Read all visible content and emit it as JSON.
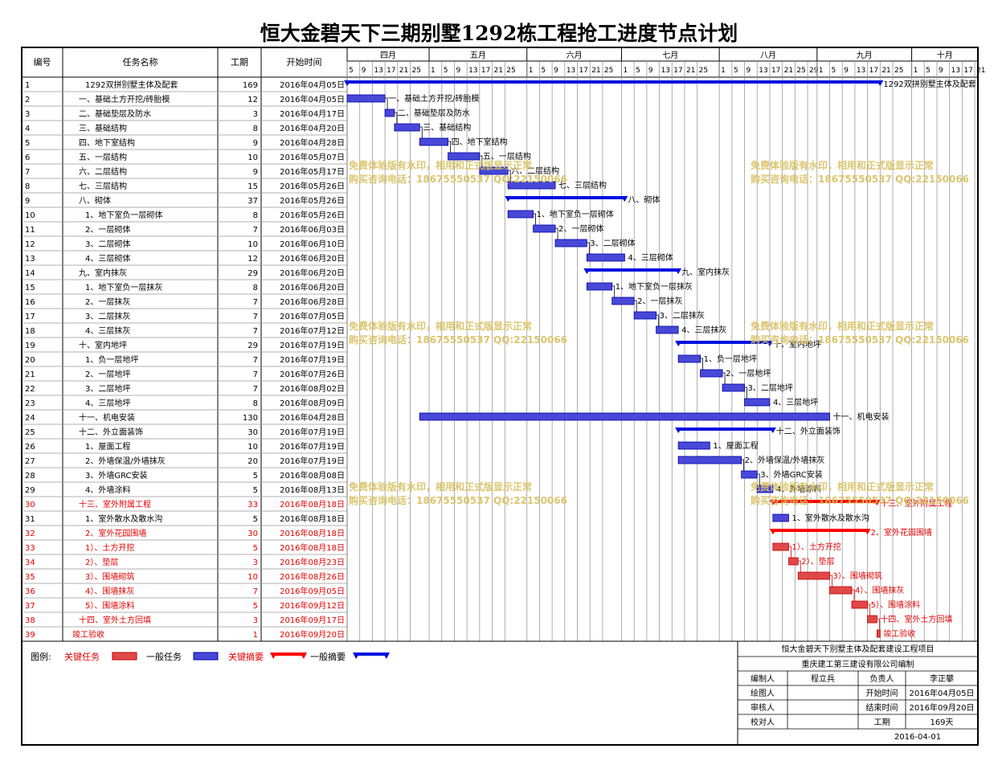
{
  "title": "恒大金碧天下三期别墅1292栋工程抢工进度节点计划",
  "header": {
    "id": "编号",
    "name": "任务名称",
    "duration": "工期",
    "start": "开始时间"
  },
  "months": [
    {
      "label": "四月",
      "days": [
        5,
        9,
        13,
        17,
        21,
        25
      ]
    },
    {
      "label": "五月",
      "days": [
        1,
        5,
        9,
        13,
        17,
        21,
        25
      ]
    },
    {
      "label": "六月",
      "days": [
        1,
        5,
        9,
        13,
        17,
        21,
        25
      ]
    },
    {
      "label": "七月",
      "days": [
        1,
        5,
        9,
        13,
        17,
        21,
        25
      ]
    },
    {
      "label": "八月",
      "days": [
        1,
        5,
        9,
        13,
        17,
        21,
        25,
        29
      ]
    },
    {
      "label": "九月",
      "days": [
        1,
        5,
        9,
        13,
        17,
        21,
        25
      ]
    },
    {
      "label": "十月",
      "days": [
        1,
        5,
        9,
        13,
        17,
        21
      ]
    }
  ],
  "colors": {
    "normal_fill": "#4848d8",
    "normal_stroke": "#0000a8",
    "critical_fill": "#e04848",
    "critical_stroke": "#c00000",
    "summary": "#0010e0",
    "summary_critical": "#ff0000",
    "critical_text": "#e00000",
    "watermark": "#d8c060"
  },
  "tasks": [
    {
      "id": "1",
      "name": "1292双拼别墅主体及配套",
      "duration": 169,
      "start": "2016年04月05日",
      "type": "summary",
      "critical": false,
      "label": "1292双拼别墅主体及配套"
    },
    {
      "id": "2",
      "name": "一、基础土方开挖/砖胎模",
      "duration": 12,
      "start": "2016年04月05日",
      "type": "task",
      "critical": false,
      "label": "一、基础土方开挖/砖胎模"
    },
    {
      "id": "3",
      "name": "二、基础垫层及防水",
      "duration": 3,
      "start": "2016年04月17日",
      "type": "task",
      "critical": false,
      "label": "二、基础垫层及防水"
    },
    {
      "id": "4",
      "name": "三、基础结构",
      "duration": 8,
      "start": "2016年04月20日",
      "type": "task",
      "critical": false,
      "label": "三、基础结构"
    },
    {
      "id": "5",
      "name": "四、地下室结构",
      "duration": 9,
      "start": "2016年04月28日",
      "type": "task",
      "critical": false,
      "label": "四、地下室结构"
    },
    {
      "id": "6",
      "name": "五、一层结构",
      "duration": 10,
      "start": "2016年05月07日",
      "type": "task",
      "critical": false,
      "label": "五、一层结构"
    },
    {
      "id": "7",
      "name": "六、二层结构",
      "duration": 9,
      "start": "2016年05月17日",
      "type": "task",
      "critical": false,
      "label": "六、二层结构"
    },
    {
      "id": "8",
      "name": "七、三层结构",
      "duration": 15,
      "start": "2016年05月26日",
      "type": "task",
      "critical": false,
      "label": "七、三层结构"
    },
    {
      "id": "9",
      "name": "八、砌体",
      "duration": 37,
      "start": "2016年05月26日",
      "type": "summary",
      "critical": false,
      "label": "八、砌体"
    },
    {
      "id": "10",
      "name": "1、地下室负一层砌体",
      "duration": 8,
      "start": "2016年05月26日",
      "type": "task",
      "critical": false,
      "label": "1、地下室负一层砌体"
    },
    {
      "id": "11",
      "name": "2、一层砌体",
      "duration": 7,
      "start": "2016年06月03日",
      "type": "task",
      "critical": false,
      "label": "2、一层砌体"
    },
    {
      "id": "12",
      "name": "3、二层砌体",
      "duration": 10,
      "start": "2016年06月10日",
      "type": "task",
      "critical": false,
      "label": "3、二层砌体"
    },
    {
      "id": "13",
      "name": "4、三层砌体",
      "duration": 12,
      "start": "2016年06月20日",
      "type": "task",
      "critical": false,
      "label": "4、三层砌体"
    },
    {
      "id": "14",
      "name": "九、室内抹灰",
      "duration": 29,
      "start": "2016年06月20日",
      "type": "summary",
      "critical": false,
      "label": "九、室内抹灰"
    },
    {
      "id": "15",
      "name": "1、地下室负一层抹灰",
      "duration": 8,
      "start": "2016年06月20日",
      "type": "task",
      "critical": false,
      "label": "1、地下室负一层抹灰"
    },
    {
      "id": "16",
      "name": "2、一层抹灰",
      "duration": 7,
      "start": "2016年06月28日",
      "type": "task",
      "critical": false,
      "label": "2、一层抹灰"
    },
    {
      "id": "17",
      "name": "3、二层抹灰",
      "duration": 7,
      "start": "2016年07月05日",
      "type": "task",
      "critical": false,
      "label": "3、二层抹灰"
    },
    {
      "id": "18",
      "name": "4、三层抹灰",
      "duration": 7,
      "start": "2016年07月12日",
      "type": "task",
      "critical": false,
      "label": "4、三层抹灰"
    },
    {
      "id": "19",
      "name": "十、室内地坪",
      "duration": 29,
      "start": "2016年07月19日",
      "type": "summary",
      "critical": false,
      "label": "十、室内地坪"
    },
    {
      "id": "20",
      "name": "1、负一层地坪",
      "duration": 7,
      "start": "2016年07月19日",
      "type": "task",
      "critical": false,
      "label": "1、负一层地坪"
    },
    {
      "id": "21",
      "name": "2、一层地坪",
      "duration": 7,
      "start": "2016年07月26日",
      "type": "task",
      "critical": false,
      "label": "2、一层地坪"
    },
    {
      "id": "22",
      "name": "3、二层地坪",
      "duration": 7,
      "start": "2016年08月02日",
      "type": "task",
      "critical": false,
      "label": "3、二层地坪"
    },
    {
      "id": "23",
      "name": "4、三层地坪",
      "duration": 8,
      "start": "2016年08月09日",
      "type": "task",
      "critical": false,
      "label": "4、三层地坪"
    },
    {
      "id": "24",
      "name": "十一、机电安装",
      "duration": 130,
      "start": "2016年04月28日",
      "type": "task",
      "critical": false,
      "label": "十一、机电安装"
    },
    {
      "id": "25",
      "name": "十二、外立面装饰",
      "duration": 30,
      "start": "2016年07月19日",
      "type": "summary",
      "critical": false,
      "label": "十二、外立面装饰"
    },
    {
      "id": "26",
      "name": "1、屋面工程",
      "duration": 10,
      "start": "2016年07月19日",
      "type": "task",
      "critical": false,
      "label": "1、屋面工程"
    },
    {
      "id": "27",
      "name": "2、外墙保温/外墙抹灰",
      "duration": 20,
      "start": "2016年07月19日",
      "type": "task",
      "critical": false,
      "label": "2、外墙保温/外墙抹灰"
    },
    {
      "id": "28",
      "name": "3、外墙GRC安装",
      "duration": 5,
      "start": "2016年08月08日",
      "type": "task",
      "critical": false,
      "label": "3、外墙GRC安装"
    },
    {
      "id": "29",
      "name": "4、外墙涂料",
      "duration": 5,
      "start": "2016年08月13日",
      "type": "task",
      "critical": false,
      "label": "4、外墙涂料"
    },
    {
      "id": "30",
      "name": "十三、室外附属工程",
      "duration": 33,
      "start": "2016年08月18日",
      "type": "summary",
      "critical": true,
      "label": "十三、室外附属工程"
    },
    {
      "id": "31",
      "name": "1、室外散水及散水沟",
      "duration": 5,
      "start": "2016年08月18日",
      "type": "task",
      "critical": false,
      "label": "1、室外散水及散水沟"
    },
    {
      "id": "32",
      "name": "2、室外花园围墙",
      "duration": 30,
      "start": "2016年08月18日",
      "type": "summary",
      "critical": true,
      "label": "2、室外花园围墙"
    },
    {
      "id": "33",
      "name": "1）、土方开挖",
      "duration": 5,
      "start": "2016年08月18日",
      "type": "task",
      "critical": true,
      "label": "1）、土方开挖"
    },
    {
      "id": "34",
      "name": "2）、垫层",
      "duration": 3,
      "start": "2016年08月23日",
      "type": "task",
      "critical": true,
      "label": "2）、垫层"
    },
    {
      "id": "35",
      "name": "3）、围墙砌筑",
      "duration": 10,
      "start": "2016年08月26日",
      "type": "task",
      "critical": true,
      "label": "3）、围墙砌筑"
    },
    {
      "id": "36",
      "name": "4）、围墙抹灰",
      "duration": 7,
      "start": "2016年09月05日",
      "type": "task",
      "critical": true,
      "label": "4）、围墙抹灰"
    },
    {
      "id": "37",
      "name": "5）、围墙涂料",
      "duration": 5,
      "start": "2016年09月12日",
      "type": "task",
      "critical": true,
      "label": "5）、围墙涂料"
    },
    {
      "id": "38",
      "name": "十四、室外土方回填",
      "duration": 3,
      "start": "2016年09月17日",
      "type": "task",
      "critical": true,
      "label": "十四、室外土方回填"
    },
    {
      "id": "39",
      "name": "竣工验收",
      "duration": 1,
      "start": "2016年09月20日",
      "type": "task",
      "critical": true,
      "label": "竣工验收"
    }
  ],
  "watermark": {
    "line1": "免费体验版有水印，相用和正式版显示正常",
    "line2": "购买咨询电话：18675550537 QQ:22150066"
  },
  "legend": {
    "label": "图例:",
    "critical_task": "关键任务",
    "normal_task": "一般任务",
    "critical_summary": "关键摘要",
    "normal_summary": "一般摘要"
  },
  "info": {
    "project": "恒大金碧天下别墅主体及配套建设工程项目",
    "company": "重庆建工第三建设有限公司编制",
    "editor_label": "编制人",
    "editor": "程立兵",
    "owner_label": "负责人",
    "owner": "李正攀",
    "drawer_label": "绘图人",
    "reviewer_label": "审核人",
    "checker_label": "校对人",
    "start_label": "开始时间",
    "start": "2016年04月05日",
    "end_label": "结束时间",
    "end": "2016年09月20日",
    "duration_label": "工期",
    "duration": "169天",
    "date": "2016-04-01"
  },
  "chart_data": {
    "type": "bar",
    "title": "恒大金碧天下三期别墅1292栋工程抢工进度节点计划",
    "x_axis": {
      "start": "2016-04-05",
      "end": "2016-10-22",
      "unit": "day",
      "tick_every_days": 4
    },
    "categories": [
      "1292双拼别墅主体及配套",
      "一、基础土方开挖/砖胎模",
      "二、基础垫层及防水",
      "三、基础结构",
      "四、地下室结构",
      "五、一层结构",
      "六、二层结构",
      "七、三层结构",
      "八、砌体",
      "1、地下室负一层砌体",
      "2、一层砌体",
      "3、二层砌体",
      "4、三层砌体",
      "九、室内抹灰",
      "1、地下室负一层抹灰",
      "2、一层抹灰",
      "3、二层抹灰",
      "4、三层抹灰",
      "十、室内地坪",
      "1、负一层地坪",
      "2、一层地坪",
      "3、二层地坪",
      "4、三层地坪",
      "十一、机电安装",
      "十二、外立面装饰",
      "1、屋面工程",
      "2、外墙保温/外墙抹灰",
      "3、外墙GRC安装",
      "4、外墙涂料",
      "十三、室外附属工程",
      "1、室外散水及散水沟",
      "2、室外花园围墙",
      "1）、土方开挖",
      "2）、垫层",
      "3）、围墙砌筑",
      "4）、围墙抹灰",
      "5）、围墙涂料",
      "十四、室外土方回填",
      "竣工验收"
    ],
    "start_dates": [
      "2016-04-05",
      "2016-04-05",
      "2016-04-17",
      "2016-04-20",
      "2016-04-28",
      "2016-05-07",
      "2016-05-17",
      "2016-05-26",
      "2016-05-26",
      "2016-05-26",
      "2016-06-03",
      "2016-06-10",
      "2016-06-20",
      "2016-06-20",
      "2016-06-20",
      "2016-06-28",
      "2016-07-05",
      "2016-07-12",
      "2016-07-19",
      "2016-07-19",
      "2016-07-26",
      "2016-08-02",
      "2016-08-09",
      "2016-04-28",
      "2016-07-19",
      "2016-07-19",
      "2016-07-19",
      "2016-08-08",
      "2016-08-13",
      "2016-08-18",
      "2016-08-18",
      "2016-08-18",
      "2016-08-18",
      "2016-08-23",
      "2016-08-26",
      "2016-09-05",
      "2016-09-12",
      "2016-09-17",
      "2016-09-20"
    ],
    "durations": [
      169,
      12,
      3,
      8,
      9,
      10,
      9,
      15,
      37,
      8,
      7,
      10,
      12,
      29,
      8,
      7,
      7,
      7,
      29,
      7,
      7,
      7,
      8,
      130,
      30,
      10,
      20,
      5,
      5,
      33,
      5,
      30,
      5,
      3,
      10,
      7,
      5,
      3,
      1
    ]
  }
}
